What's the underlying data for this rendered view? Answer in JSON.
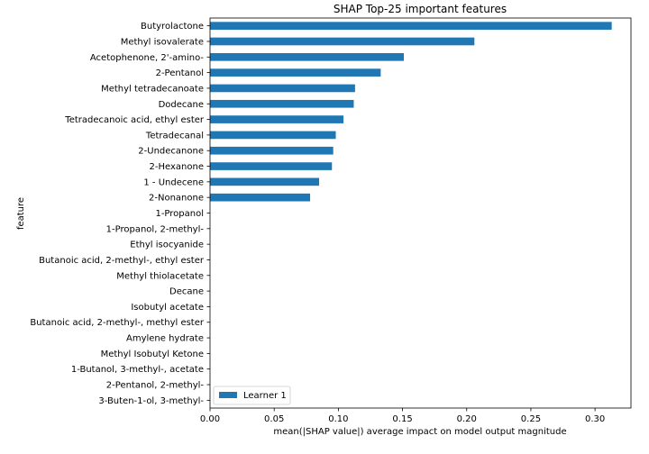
{
  "chart_data": {
    "type": "bar",
    "orientation": "horizontal",
    "title": "SHAP Top-25 important features",
    "xlabel": "mean(|SHAP value|) average impact on model output magnitude",
    "ylabel": "feature",
    "xlim": [
      0,
      0.328
    ],
    "xticks": [
      0.0,
      0.05,
      0.1,
      0.15,
      0.2,
      0.25,
      0.3
    ],
    "xtick_labels": [
      "0.00",
      "0.05",
      "0.10",
      "0.15",
      "0.20",
      "0.25",
      "0.30"
    ],
    "grid": false,
    "legend_position": "lower-left",
    "series": [
      {
        "name": "Learner 1",
        "color": "#1f77b4",
        "categories": [
          "Butyrolactone",
          "Methyl isovalerate",
          "Acetophenone, 2'-amino-",
          "2-Pentanol",
          "Methyl tetradecanoate",
          "Dodecane",
          "Tetradecanoic acid, ethyl ester",
          "Tetradecanal",
          "2-Undecanone",
          "2-Hexanone",
          "1 - Undecene",
          "2-Nonanone",
          "1-Propanol",
          "1-Propanol, 2-methyl-",
          "Ethyl isocyanide",
          "Butanoic acid, 2-methyl-, ethyl ester",
          "Methyl thiolacetate",
          "Decane",
          "Isobutyl acetate",
          "Butanoic acid, 2-methyl-, methyl ester",
          "Amylene hydrate",
          "Methyl Isobutyl Ketone",
          "1-Butanol, 3-methyl-, acetate",
          "2-Pentanol, 2-methyl-",
          "3-Buten-1-ol, 3-methyl-"
        ],
        "values": [
          0.313,
          0.206,
          0.151,
          0.133,
          0.113,
          0.112,
          0.104,
          0.098,
          0.096,
          0.095,
          0.085,
          0.078,
          0,
          0,
          0,
          0,
          0,
          0,
          0,
          0,
          0,
          0,
          0,
          0,
          0
        ]
      }
    ]
  }
}
